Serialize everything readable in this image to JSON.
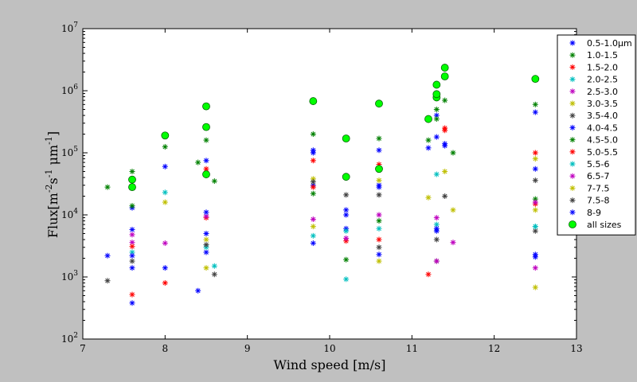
{
  "chart_data": {
    "type": "scatter",
    "xlabel": "Wind speed [m/s]",
    "ylabel_parts": [
      "Flux[m",
      "-2",
      "s",
      "-1",
      " μm",
      "-1",
      "]"
    ],
    "xlim": [
      7,
      13
    ],
    "ylim": [
      100,
      10000000
    ],
    "yscale": "log",
    "x_ticks": [
      "7",
      "8",
      "9",
      "10",
      "11",
      "12",
      "13"
    ],
    "y_ticks": [
      {
        "base": "10",
        "exp": "2"
      },
      {
        "base": "10",
        "exp": "3"
      },
      {
        "base": "10",
        "exp": "4"
      },
      {
        "base": "10",
        "exp": "5"
      },
      {
        "base": "10",
        "exp": "6"
      },
      {
        "base": "10",
        "exp": "7"
      }
    ],
    "grid": false,
    "legend_position": "top-right outside",
    "series": [
      {
        "name": "0.5-1.0μm",
        "marker": "star",
        "color": "#0000ff",
        "points": [
          [
            7.3,
            2200
          ],
          [
            7.6,
            380
          ],
          [
            7.6,
            1400
          ],
          [
            7.6,
            13000
          ],
          [
            8.0,
            1400
          ],
          [
            8.0,
            60000
          ],
          [
            8.4,
            600
          ],
          [
            8.5,
            2500
          ],
          [
            8.5,
            75000
          ],
          [
            9.8,
            3500
          ],
          [
            9.8,
            100000
          ],
          [
            10.2,
            6000
          ],
          [
            10.6,
            2300
          ],
          [
            10.6,
            110000
          ],
          [
            11.2,
            120000
          ],
          [
            11.3,
            5500
          ],
          [
            11.3,
            400000
          ],
          [
            11.4,
            130000
          ],
          [
            12.5,
            2300
          ],
          [
            12.5,
            450000
          ]
        ]
      },
      {
        "name": "1.0-1.5",
        "marker": "star",
        "color": "#008000",
        "points": [
          [
            7.3,
            28000
          ],
          [
            7.6,
            50000
          ],
          [
            8.0,
            125000
          ],
          [
            8.4,
            70000
          ],
          [
            8.5,
            160000
          ],
          [
            9.8,
            200000
          ],
          [
            10.6,
            170000
          ],
          [
            11.2,
            160000
          ],
          [
            11.3,
            500000
          ],
          [
            11.4,
            700000
          ],
          [
            12.5,
            600000
          ]
        ]
      },
      {
        "name": "1.5-2.0",
        "marker": "star",
        "color": "#ff0000",
        "points": [
          [
            7.6,
            520
          ],
          [
            8.0,
            800
          ],
          [
            8.5,
            55000
          ],
          [
            9.8,
            75000
          ],
          [
            10.6,
            65000
          ],
          [
            11.2,
            1100
          ],
          [
            11.4,
            250000
          ],
          [
            12.5,
            100000
          ]
        ]
      },
      {
        "name": "2.0-2.5",
        "marker": "star",
        "color": "#00bfbf",
        "points": [
          [
            8.0,
            23000
          ],
          [
            8.6,
            1500
          ],
          [
            10.2,
            920
          ],
          [
            11.3,
            45000
          ],
          [
            12.5,
            6500
          ]
        ]
      },
      {
        "name": "2.5-3.0",
        "marker": "star",
        "color": "#bf00bf",
        "points": [
          [
            7.6,
            3600
          ],
          [
            8.0,
            3500
          ],
          [
            9.8,
            8500
          ],
          [
            11.3,
            9000
          ],
          [
            11.5,
            3600
          ],
          [
            12.5,
            1400
          ]
        ]
      },
      {
        "name": "3.0-3.5",
        "marker": "star",
        "color": "#bfbf00",
        "points": [
          [
            8.0,
            16000
          ],
          [
            8.5,
            1400
          ],
          [
            9.8,
            6500
          ],
          [
            10.6,
            1800
          ],
          [
            11.2,
            19000
          ],
          [
            11.5,
            12000
          ],
          [
            12.5,
            680
          ]
        ]
      },
      {
        "name": "3.5-4.0",
        "marker": "star",
        "color": "#404040",
        "points": [
          [
            7.3,
            870
          ],
          [
            8.6,
            1100
          ],
          [
            10.2,
            21000
          ],
          [
            10.6,
            3000
          ],
          [
            11.3,
            1800
          ],
          [
            12.5,
            5500
          ]
        ]
      },
      {
        "name": "4.0-4.5",
        "marker": "star",
        "color": "#0000ff",
        "points": [
          [
            7.6,
            5800
          ],
          [
            8.5,
            5000
          ],
          [
            9.8,
            30000
          ],
          [
            10.2,
            10000
          ],
          [
            10.6,
            30000
          ],
          [
            11.3,
            180000
          ],
          [
            12.5,
            2100
          ]
        ]
      },
      {
        "name": "4.5-5.0",
        "marker": "star",
        "color": "#008000",
        "points": [
          [
            7.6,
            14000
          ],
          [
            8.6,
            35000
          ],
          [
            9.8,
            22000
          ],
          [
            10.2,
            1900
          ],
          [
            10.6,
            8000
          ],
          [
            11.3,
            350000
          ],
          [
            11.5,
            100000
          ],
          [
            12.5,
            18000
          ]
        ]
      },
      {
        "name": "5.0-5.5",
        "marker": "star",
        "color": "#ff0000",
        "points": [
          [
            7.6,
            3100
          ],
          [
            8.5,
            9000
          ],
          [
            9.8,
            28000
          ],
          [
            10.2,
            3800
          ],
          [
            10.6,
            4000
          ],
          [
            11.4,
            230000
          ],
          [
            12.5,
            15000
          ]
        ]
      },
      {
        "name": "5.5-6",
        "marker": "star",
        "color": "#00bfbf",
        "points": [
          [
            7.6,
            2500
          ],
          [
            8.5,
            3000
          ],
          [
            9.8,
            4600
          ],
          [
            10.2,
            5500
          ],
          [
            10.6,
            6000
          ],
          [
            11.3,
            7000
          ],
          [
            12.5,
            6500
          ]
        ]
      },
      {
        "name": "6.5-7",
        "marker": "star",
        "color": "#bf00bf",
        "points": [
          [
            7.6,
            4800
          ],
          [
            8.5,
            9500
          ],
          [
            10.2,
            4200
          ],
          [
            10.6,
            10000
          ],
          [
            11.3,
            1800
          ],
          [
            12.5,
            16000
          ]
        ]
      },
      {
        "name": "7-7.5",
        "marker": "star",
        "color": "#bfbf00",
        "points": [
          [
            8.5,
            4000
          ],
          [
            9.8,
            38000
          ],
          [
            10.6,
            36000
          ],
          [
            11.4,
            50000
          ],
          [
            12.5,
            12000
          ],
          [
            12.5,
            80000
          ]
        ]
      },
      {
        "name": "7.5-8",
        "marker": "star",
        "color": "#404040",
        "points": [
          [
            7.6,
            1800
          ],
          [
            8.5,
            3300
          ],
          [
            9.8,
            34000
          ],
          [
            10.6,
            21000
          ],
          [
            11.3,
            4000
          ],
          [
            11.4,
            20000
          ],
          [
            12.5,
            36000
          ]
        ]
      },
      {
        "name": "8-9",
        "marker": "star",
        "color": "#0000ff",
        "points": [
          [
            7.6,
            2200
          ],
          [
            8.5,
            11000
          ],
          [
            9.8,
            110000
          ],
          [
            10.2,
            12000
          ],
          [
            10.6,
            28000
          ],
          [
            11.3,
            6000
          ],
          [
            11.4,
            140000
          ],
          [
            12.5,
            55000
          ]
        ]
      },
      {
        "name": "all sizes",
        "marker": "circle",
        "color": "#00ff00",
        "points": [
          [
            7.6,
            28000
          ],
          [
            7.6,
            37000
          ],
          [
            8.0,
            190000
          ],
          [
            8.5,
            45000
          ],
          [
            8.5,
            260000
          ],
          [
            8.5,
            560000
          ],
          [
            9.8,
            680000
          ],
          [
            10.2,
            41000
          ],
          [
            10.2,
            170000
          ],
          [
            10.6,
            55000
          ],
          [
            10.6,
            620000
          ],
          [
            11.2,
            350000
          ],
          [
            11.3,
            780000
          ],
          [
            11.3,
            880000
          ],
          [
            11.3,
            1250000
          ],
          [
            11.4,
            1700000
          ],
          [
            11.4,
            2350000
          ],
          [
            12.5,
            1550000
          ]
        ]
      }
    ]
  }
}
